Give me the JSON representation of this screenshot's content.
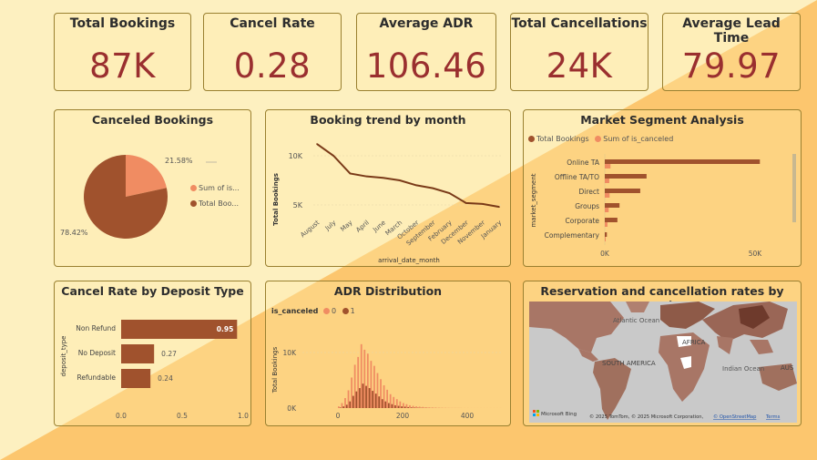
{
  "kpis": [
    {
      "title": "Total Bookings",
      "value": "87K"
    },
    {
      "title": "Cancel Rate",
      "value": "0.28"
    },
    {
      "title": "Average ADR",
      "value": "106.46"
    },
    {
      "title": "Total Cancellations",
      "value": "24K"
    },
    {
      "title": "Average Lead Time",
      "value": "79.97"
    }
  ],
  "colors": {
    "accent_dark": "#a0522d",
    "accent_light": "#f08c62",
    "kpi_value": "#9a2f2f",
    "bg_light": "#fdf0c0",
    "bg_orange": "#fcc66e"
  },
  "canceled_bookings": {
    "title": "Canceled Bookings",
    "legend": [
      "Sum of is...",
      "Total Boo..."
    ],
    "label_small": "21.58%",
    "label_large": "78.42%"
  },
  "booking_trend": {
    "title": "Booking trend by month",
    "ylabel": "Total Bookings",
    "xlabel": "arrival_date_month",
    "y_ticks": [
      "10K",
      "5K"
    ]
  },
  "market_segment": {
    "title": "Market Segment Analysis",
    "legend": [
      "Total Bookings",
      "Sum of is_canceled"
    ],
    "ylabel": "market_segment",
    "x_ticks": [
      "0K",
      "50K"
    ]
  },
  "deposit_type": {
    "title": "Cancel Rate by Deposit Type",
    "ylabel": "deposit_type",
    "x_ticks": [
      "0.0",
      "0.5",
      "1.0"
    ]
  },
  "adr_distribution": {
    "title": "ADR Distribution",
    "legend_title": "is_canceled",
    "legend": [
      "0",
      "1"
    ],
    "ylabel": "Total Bookings",
    "y_ticks": [
      "10K",
      "0K"
    ],
    "x_ticks": [
      "0",
      "200",
      "400"
    ]
  },
  "map": {
    "title": "Reservation and cancellation rates by country",
    "labels": [
      "Atlantic Ocean",
      "SOUTH AMERICA",
      "AFRICA",
      "Indian Ocean",
      "AUS"
    ],
    "bing_label": "Microsoft Bing",
    "copyright": "© 2025 TomTom, © 2025 Microsoft Corporation,",
    "osm_link": "© OpenStreetMap",
    "terms_link": "Terms"
  },
  "chart_data": [
    {
      "type": "pie",
      "title": "Canceled Bookings",
      "labels": [
        "Sum of is...",
        "Total Boo..."
      ],
      "values": [
        21.58,
        78.42
      ]
    },
    {
      "type": "line",
      "title": "Booking trend by month",
      "xlabel": "arrival_date_month",
      "ylabel": "Total Bookings",
      "categories": [
        "August",
        "July",
        "May",
        "April",
        "June",
        "March",
        "October",
        "September",
        "February",
        "December",
        "November",
        "January"
      ],
      "values": [
        11200,
        10000,
        8200,
        7900,
        7750,
        7500,
        7000,
        6700,
        6200,
        5200,
        5100,
        4800
      ],
      "ylim": [
        4500,
        11500
      ]
    },
    {
      "type": "bar",
      "title": "Market Segment Analysis",
      "ylabel": "market_segment",
      "categories": [
        "Online TA",
        "Offline TA/TO",
        "Direct",
        "Groups",
        "Corporate",
        "Complementary"
      ],
      "series": [
        {
          "name": "Total Bookings",
          "values": [
            51600,
            13900,
            11800,
            4900,
            4200,
            700
          ]
        },
        {
          "name": "Sum of is_canceled",
          "values": [
            1900,
            1500,
            1600,
            1300,
            900,
            300
          ]
        }
      ],
      "xlim": [
        0,
        60000
      ]
    },
    {
      "type": "bar",
      "title": "Cancel Rate by Deposit Type",
      "ylabel": "deposit_type",
      "categories": [
        "Non Refund",
        "No Deposit",
        "Refundable"
      ],
      "values": [
        0.95,
        0.27,
        0.24
      ],
      "xlim": [
        0,
        1.0
      ]
    },
    {
      "type": "bar",
      "title": "ADR Distribution",
      "ylabel": "Total Bookings",
      "series": [
        {
          "name": "0",
          "x": [
            0,
            10,
            20,
            30,
            40,
            50,
            60,
            70,
            80,
            90,
            100,
            110,
            120,
            130,
            140,
            150,
            160,
            170,
            180,
            190,
            200,
            210,
            220,
            230,
            240,
            250,
            260,
            270,
            280,
            290,
            300,
            310,
            320,
            330,
            340,
            350,
            360,
            370,
            380,
            390,
            400,
            410,
            420,
            430,
            440,
            450,
            460,
            470,
            480,
            490,
            500
          ],
          "values": [
            300,
            900,
            1800,
            3200,
            5500,
            7800,
            9200,
            11500,
            10500,
            9800,
            8500,
            7600,
            6300,
            5200,
            4100,
            3300,
            2500,
            2000,
            1600,
            1200,
            900,
            700,
            500,
            400,
            300,
            250,
            200,
            150,
            120,
            100,
            80,
            60,
            50,
            40,
            30,
            20,
            20,
            15,
            10,
            10,
            10,
            5,
            5,
            5,
            5,
            5,
            5,
            5,
            5,
            5,
            5
          ]
        },
        {
          "name": "1",
          "x": [
            0,
            10,
            20,
            30,
            40,
            50,
            60,
            70,
            80,
            90,
            100,
            110,
            120,
            130,
            140,
            150,
            160,
            170,
            180,
            190,
            200,
            210,
            220,
            230,
            240,
            250,
            260,
            270,
            280,
            290,
            300,
            310,
            320,
            330,
            340,
            350,
            360,
            370,
            380,
            390,
            400,
            410,
            420,
            430,
            440,
            450,
            460,
            470,
            480,
            490,
            500
          ],
          "values": [
            100,
            300,
            600,
            1200,
            2200,
            3000,
            3600,
            4400,
            4000,
            3600,
            3100,
            2600,
            2100,
            1600,
            1200,
            900,
            700,
            500,
            400,
            300,
            250,
            180,
            120,
            90,
            70,
            50,
            40,
            30,
            20,
            15,
            10,
            10,
            5,
            5,
            5,
            5,
            5,
            5,
            0,
            0,
            0,
            0,
            0,
            0,
            0,
            0,
            0,
            0,
            0,
            0,
            0
          ]
        }
      ],
      "xlim": [
        -10,
        520
      ],
      "ylim": [
        0,
        14000
      ]
    }
  ]
}
